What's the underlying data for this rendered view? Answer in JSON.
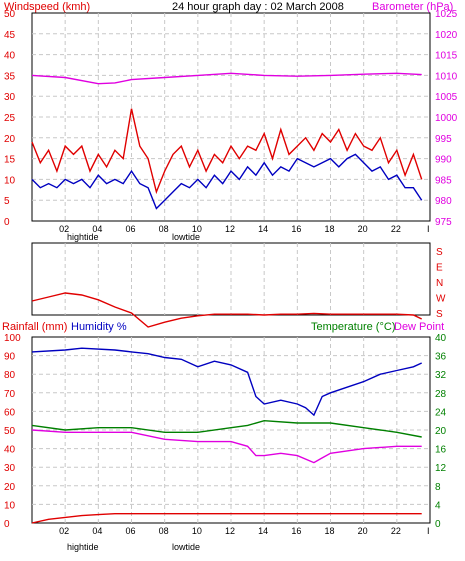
{
  "header": {
    "title": "24 hour graph day : 02 March 2008",
    "left_label": "Windspeed (kmh)",
    "right_label": "Barometer (hPa)"
  },
  "bottom_header": {
    "rain_label": "Rainfall (mm)",
    "humidity_label": "Humidity %",
    "temp_label": "Temperature (°C)",
    "dew_label": "Dew Point"
  },
  "tide_labels": {
    "high": "hightide",
    "low": "lowtide"
  },
  "colors": {
    "gust": "#e00000",
    "wind": "#0000c0",
    "barometer": "#e000e0",
    "direction": "#e00000",
    "humidity": "#0000c0",
    "temperature": "#008000",
    "dewpoint": "#e000e0",
    "rain": "#e00000",
    "left_axis": "#e00000",
    "right_axis": "#e000e0",
    "temp_axis": "#008000"
  },
  "chart_data": [
    {
      "type": "line",
      "x_ticks": [
        "02",
        "04",
        "06",
        "08",
        "10",
        "12",
        "14",
        "16",
        "18",
        "20",
        "22",
        "I"
      ],
      "y_left": {
        "ticks": [
          "0",
          "5",
          "10",
          "15",
          "20",
          "25",
          "30",
          "35",
          "40",
          "45",
          "50"
        ],
        "range": [
          0,
          50
        ]
      },
      "y_right": {
        "ticks": [
          "975",
          "980",
          "985",
          "990",
          "995",
          "1000",
          "1005",
          "1010",
          "1015",
          "1020",
          "1025"
        ],
        "range": [
          975,
          1025
        ]
      },
      "grid": true,
      "series": [
        {
          "key": "barometer",
          "axis": "right",
          "x": [
            0,
            2,
            4,
            5,
            6,
            8,
            10,
            12,
            14,
            16,
            18,
            20,
            22,
            23.5
          ],
          "values": [
            1010,
            1009.5,
            1008,
            1008.2,
            1009,
            1009.5,
            1010,
            1010.5,
            1010,
            1009.8,
            1010,
            1010.3,
            1010.5,
            1010.2
          ]
        },
        {
          "key": "gust",
          "axis": "left",
          "x": [
            0,
            0.5,
            1,
            1.5,
            2,
            2.5,
            3,
            3.5,
            4,
            4.5,
            5,
            5.5,
            6,
            6.5,
            7,
            7.5,
            8,
            8.5,
            9,
            9.5,
            10,
            10.5,
            11,
            11.5,
            12,
            12.5,
            13,
            13.5,
            14,
            14.5,
            15,
            15.5,
            16,
            16.5,
            17,
            17.5,
            18,
            18.5,
            19,
            19.5,
            20,
            20.5,
            21,
            21.5,
            22,
            22.5,
            23,
            23.5
          ],
          "values": [
            19,
            14,
            17,
            12,
            18,
            16,
            18,
            12,
            16,
            13,
            17,
            15,
            27,
            18,
            15,
            7,
            12,
            16,
            18,
            13,
            17,
            12,
            16,
            14,
            18,
            15,
            18,
            17,
            21,
            15,
            22,
            16,
            18,
            20,
            17,
            21,
            19,
            22,
            17,
            21,
            18,
            17,
            20,
            14,
            17,
            11,
            16,
            10
          ]
        },
        {
          "key": "wind",
          "axis": "left",
          "x": [
            0,
            0.5,
            1,
            1.5,
            2,
            2.5,
            3,
            3.5,
            4,
            4.5,
            5,
            5.5,
            6,
            6.5,
            7,
            7.5,
            8,
            8.5,
            9,
            9.5,
            10,
            10.5,
            11,
            11.5,
            12,
            12.5,
            13,
            13.5,
            14,
            14.5,
            15,
            15.5,
            16,
            16.5,
            17,
            17.5,
            18,
            18.5,
            19,
            19.5,
            20,
            20.5,
            21,
            21.5,
            22,
            22.5,
            23,
            23.5
          ],
          "values": [
            10,
            8,
            9,
            8,
            10,
            9,
            10,
            8,
            11,
            9,
            10,
            9,
            12,
            9,
            8,
            3,
            5,
            7,
            9,
            8,
            10,
            8,
            11,
            9,
            12,
            10,
            13,
            11,
            14,
            11,
            13,
            12,
            15,
            14,
            13,
            14,
            15,
            13,
            15,
            16,
            14,
            12,
            13,
            10,
            11,
            8,
            8,
            5
          ]
        }
      ]
    },
    {
      "type": "line",
      "y_ticks": [
        "S",
        "E",
        "N",
        "W",
        "S"
      ],
      "grid": true,
      "series": [
        {
          "key": "direction",
          "x": [
            0,
            1,
            2,
            3,
            4,
            5,
            6,
            7,
            8,
            9,
            10,
            11,
            12,
            13,
            14,
            15,
            16,
            17,
            18,
            19,
            20,
            21,
            22,
            23,
            23.5
          ],
          "values": [
            225,
            215,
            205,
            210,
            222,
            240,
            255,
            290,
            278,
            268,
            262,
            258,
            258,
            258,
            260,
            258,
            258,
            256,
            258,
            258,
            258,
            258,
            258,
            260,
            270
          ]
        }
      ]
    },
    {
      "type": "line",
      "x_ticks": [
        "02",
        "04",
        "06",
        "08",
        "10",
        "12",
        "14",
        "16",
        "18",
        "20",
        "22",
        "I"
      ],
      "y_left": {
        "ticks": [
          "0",
          "10",
          "20",
          "30",
          "40",
          "50",
          "60",
          "70",
          "80",
          "90",
          "100"
        ],
        "range": [
          0,
          100
        ]
      },
      "y_right": {
        "ticks": [
          "0",
          "4",
          "8",
          "12",
          "16",
          "20",
          "24",
          "28",
          "32",
          "36",
          "40"
        ],
        "range": [
          0,
          40
        ]
      },
      "grid": true,
      "series": [
        {
          "key": "humidity",
          "axis": "left",
          "x": [
            0,
            2,
            3,
            5,
            6,
            7,
            8,
            9,
            10,
            11,
            12,
            13,
            13.5,
            14,
            15,
            16,
            16.5,
            17,
            17.5,
            18,
            19,
            20,
            21,
            22,
            23,
            23.5
          ],
          "values": [
            92,
            93,
            94,
            93,
            92,
            91,
            89,
            88,
            84,
            87,
            85,
            81,
            68,
            64,
            66,
            64,
            62,
            58,
            68,
            70,
            73,
            76,
            80,
            82,
            84,
            86
          ]
        },
        {
          "key": "temperature",
          "axis": "right",
          "x": [
            0,
            2,
            4,
            6,
            8,
            10,
            12,
            13,
            14,
            16,
            18,
            20,
            22,
            23.5
          ],
          "values": [
            21,
            20,
            20.5,
            20.5,
            19.5,
            19.5,
            20.5,
            21,
            22,
            21.5,
            21.5,
            20.5,
            19.5,
            18.5
          ]
        },
        {
          "key": "dewpoint",
          "axis": "right",
          "x": [
            0,
            2,
            4,
            6,
            8,
            10,
            12,
            13,
            13.5,
            14,
            15,
            16,
            17,
            17.5,
            18,
            20,
            22,
            23.5
          ],
          "values": [
            20,
            19.5,
            19.5,
            19.5,
            18,
            17.5,
            17.5,
            16.5,
            14.5,
            14.5,
            15,
            14.5,
            13,
            14,
            15,
            16,
            16.5,
            16.5
          ]
        },
        {
          "key": "rain",
          "axis": "left",
          "x": [
            0,
            1,
            2,
            3,
            4,
            5,
            6,
            8,
            10,
            12,
            14,
            16,
            18,
            20,
            22,
            23.5
          ],
          "values": [
            0,
            2,
            3,
            4,
            4.5,
            5,
            5,
            5,
            5,
            5,
            5,
            5,
            5,
            5,
            5,
            5
          ]
        }
      ]
    }
  ]
}
